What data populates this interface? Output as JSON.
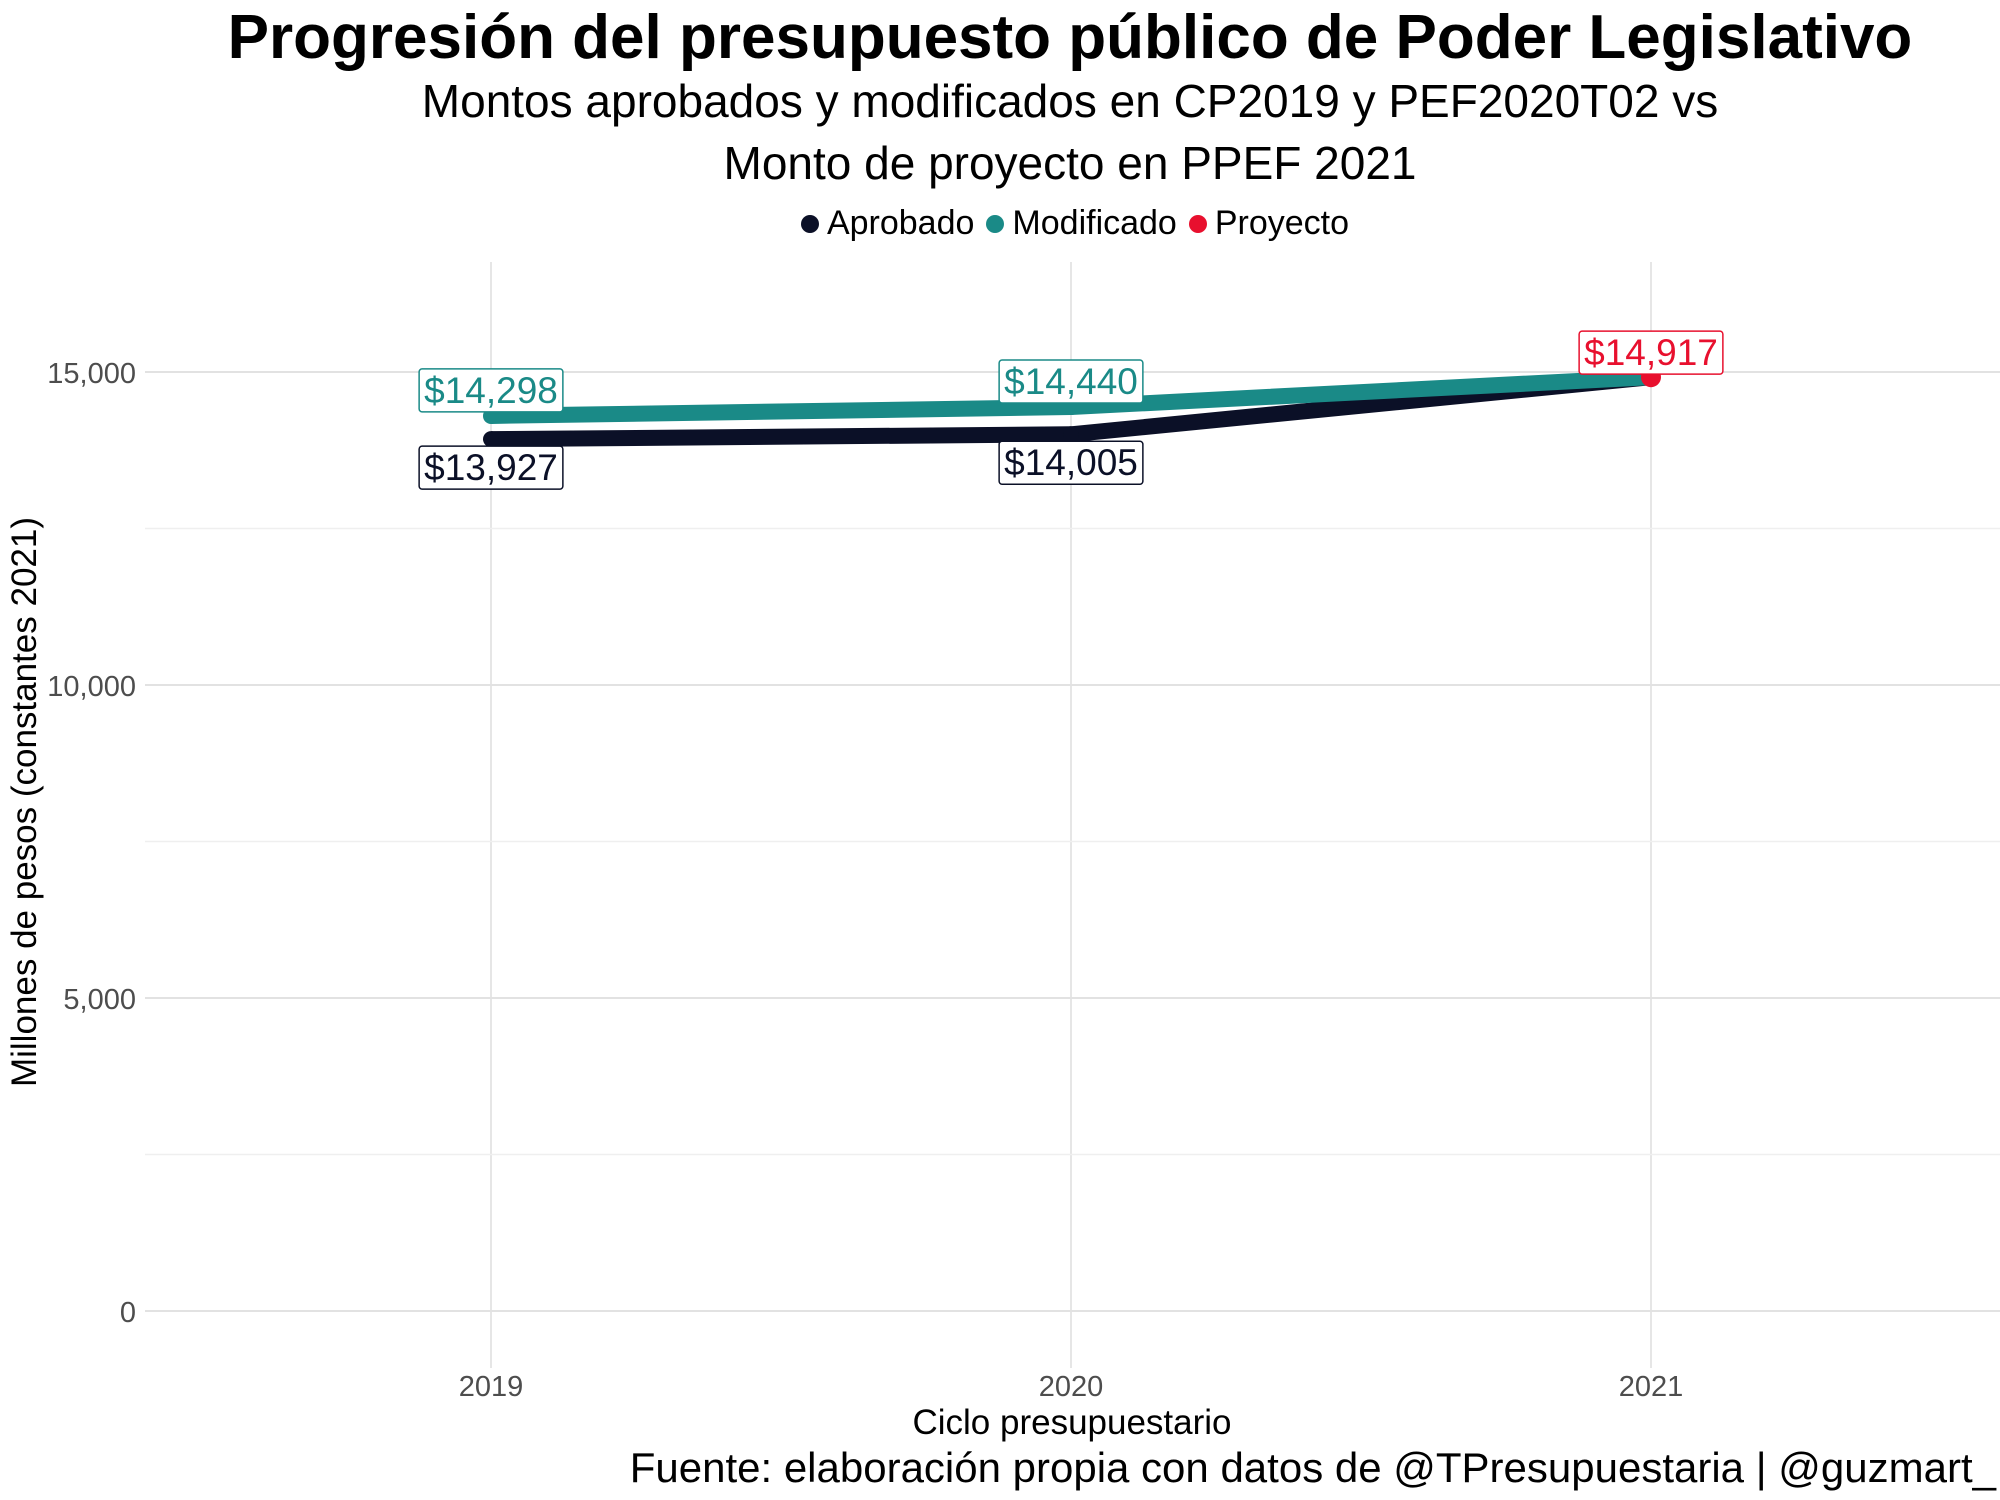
{
  "chart_data": {
    "type": "line",
    "title": "Progresión del presupuesto público de Poder Legislativo",
    "subtitle": [
      "Montos aprobados y modificados en CP2019 y PEF2020T02 vs",
      "Monto de proyecto en PPEF 2021"
    ],
    "xlabel": "Ciclo presupuestario",
    "ylabel": "Millones de pesos (constantes 2021)",
    "categories": [
      "2019",
      "2020",
      "2021"
    ],
    "ylim": [
      0,
      15500
    ],
    "yticks": [
      0,
      5000,
      10000,
      15000
    ],
    "ytick_labels": [
      "0",
      "5,000",
      "10,000",
      "15,000"
    ],
    "grid": true,
    "legend_position": "top",
    "series": [
      {
        "name": "Aprobado",
        "color": "#0b1027",
        "x": [
          "2019",
          "2020",
          "2021"
        ],
        "values": [
          13927,
          14005,
          14917
        ],
        "labels": [
          "$13,927",
          "$14,005",
          null
        ]
      },
      {
        "name": "Modificado",
        "color": "#1a8a87",
        "x": [
          "2019",
          "2020",
          "2021"
        ],
        "values": [
          14298,
          14440,
          14917
        ],
        "labels": [
          "$14,298",
          "$14,440",
          null
        ]
      },
      {
        "name": "Proyecto",
        "color": "#e8102e",
        "x": [
          "2021"
        ],
        "values": [
          14917
        ],
        "labels": [
          "$14,917"
        ]
      }
    ],
    "caption": "Fuente: elaboración propia con datos de @TPresupuestaria | @guzmart_"
  }
}
